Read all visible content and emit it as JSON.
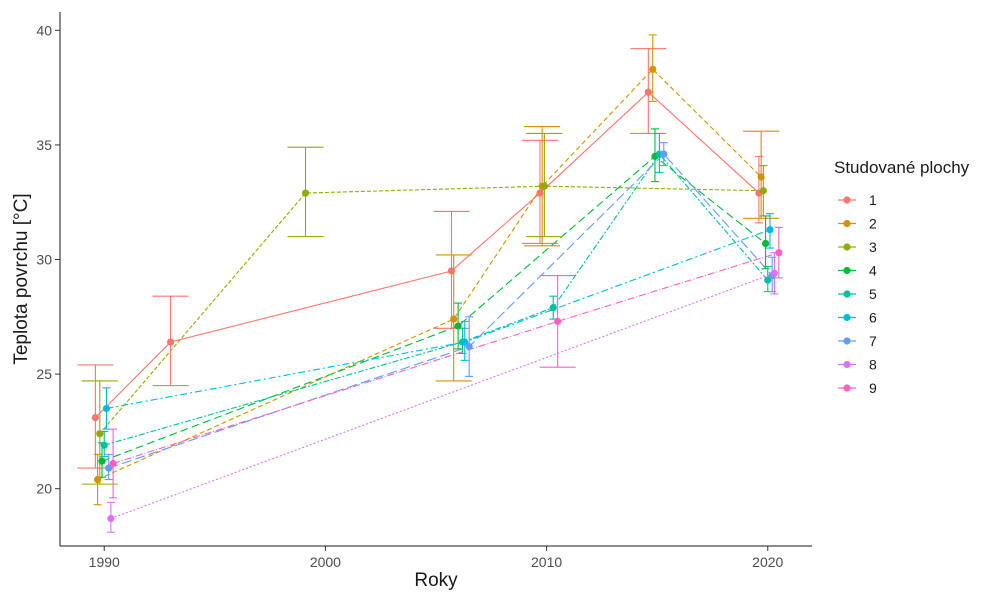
{
  "chart_data": {
    "type": "line",
    "title": "",
    "xlabel": "Roky",
    "ylabel": "Teplota povrchu [°C]",
    "xlim": [
      1988,
      2022
    ],
    "ylim": [
      17.5,
      40.8
    ],
    "xticks": [
      1990,
      2000,
      2010,
      2020
    ],
    "yticks": [
      20,
      25,
      30,
      35,
      40
    ],
    "legend": {
      "title": "Studované plochy",
      "position": "right"
    },
    "error_bars": true,
    "series": [
      {
        "name": "1",
        "color": "#F8766D",
        "dash": "solid",
        "points": [
          {
            "x": 1989.6,
            "y": 23.1,
            "low": 20.9,
            "high": 25.4
          },
          {
            "x": 1993.0,
            "y": 26.4,
            "low": 24.5,
            "high": 28.4
          },
          {
            "x": 2005.7,
            "y": 29.5,
            "low": 27.0,
            "high": 32.1
          },
          {
            "x": 2009.7,
            "y": 32.9,
            "low": 30.7,
            "high": 35.2
          },
          {
            "x": 2014.6,
            "y": 37.3,
            "low": 35.5,
            "high": 39.2
          },
          {
            "x": 2019.6,
            "y": 32.9,
            "low": 31.6,
            "high": 34.5
          }
        ]
      },
      {
        "name": "2",
        "color": "#D39200",
        "dash": "5,3",
        "points": [
          {
            "x": 1989.7,
            "y": 20.4,
            "low": 19.3,
            "high": 21.5
          },
          {
            "x": 2005.8,
            "y": 27.4,
            "low": 24.7,
            "high": 30.2
          },
          {
            "x": 2009.8,
            "y": 33.2,
            "low": 30.6,
            "high": 35.8
          },
          {
            "x": 2014.8,
            "y": 38.3,
            "low": 36.9,
            "high": 39.8
          },
          {
            "x": 2019.7,
            "y": 33.6,
            "low": 31.8,
            "high": 35.6
          }
        ]
      },
      {
        "name": "3",
        "color": "#93AA00",
        "dash": "4,2",
        "points": [
          {
            "x": 1989.8,
            "y": 22.4,
            "low": 20.2,
            "high": 24.7
          },
          {
            "x": 1999.1,
            "y": 32.9,
            "low": 31.0,
            "high": 34.9
          },
          {
            "x": 2009.9,
            "y": 33.2,
            "low": 31.0,
            "high": 35.5
          },
          {
            "x": 2019.8,
            "y": 33.0,
            "low": 31.9,
            "high": 34.1
          }
        ]
      },
      {
        "name": "4",
        "color": "#00BA38",
        "dash": "8,4",
        "points": [
          {
            "x": 1989.9,
            "y": 21.2,
            "low": 20.5,
            "high": 22.0
          },
          {
            "x": 2006.0,
            "y": 27.1,
            "low": 26.1,
            "high": 28.1
          },
          {
            "x": 2014.9,
            "y": 34.5,
            "low": 33.4,
            "high": 35.7
          },
          {
            "x": 2019.9,
            "y": 30.7,
            "low": 29.6,
            "high": 31.9
          }
        ]
      },
      {
        "name": "5",
        "color": "#00C19F",
        "dash": "6,2,2,2",
        "points": [
          {
            "x": 1990.0,
            "y": 21.9,
            "low": 21.4,
            "high": 22.5
          },
          {
            "x": 2006.2,
            "y": 26.4,
            "low": 25.9,
            "high": 27.0
          },
          {
            "x": 2010.3,
            "y": 27.9,
            "low": 27.4,
            "high": 28.4
          },
          {
            "x": 2015.1,
            "y": 34.6,
            "low": 33.8,
            "high": 35.5
          },
          {
            "x": 2020.0,
            "y": 29.1,
            "low": 28.6,
            "high": 29.7
          }
        ]
      },
      {
        "name": "6",
        "color": "#00B9E3",
        "dash": "7,3,2,3",
        "points": [
          {
            "x": 1990.1,
            "y": 23.5,
            "low": 22.6,
            "high": 24.4
          },
          {
            "x": 2006.3,
            "y": 26.4,
            "low": 25.6,
            "high": 27.3
          },
          {
            "x": 2020.1,
            "y": 31.3,
            "low": 30.5,
            "high": 32.0
          }
        ]
      },
      {
        "name": "7",
        "color": "#619CFF",
        "dash": "10,4",
        "points": [
          {
            "x": 1990.2,
            "y": 20.9,
            "low": 20.4,
            "high": 21.5
          },
          {
            "x": 2006.5,
            "y": 26.2,
            "low": 24.9,
            "high": 27.5
          },
          {
            "x": 2015.3,
            "y": 34.6,
            "low": 34.1,
            "high": 35.1
          },
          {
            "x": 2020.2,
            "y": 29.3,
            "low": 28.6,
            "high": 30.1
          }
        ]
      },
      {
        "name": "8",
        "color": "#DB72FB",
        "dash": "2,2",
        "points": [
          {
            "x": 1990.3,
            "y": 18.7,
            "low": 18.1,
            "high": 19.4
          },
          {
            "x": 2020.3,
            "y": 29.4,
            "low": 28.5,
            "high": 30.3
          }
        ]
      },
      {
        "name": "9",
        "color": "#FF61C3",
        "dash": "7,2,1,2",
        "points": [
          {
            "x": 1990.4,
            "y": 21.1,
            "low": 19.6,
            "high": 22.6
          },
          {
            "x": 2010.5,
            "y": 27.3,
            "low": 25.3,
            "high": 29.3
          },
          {
            "x": 2020.5,
            "y": 30.3,
            "low": 29.2,
            "high": 31.4
          }
        ]
      }
    ]
  }
}
